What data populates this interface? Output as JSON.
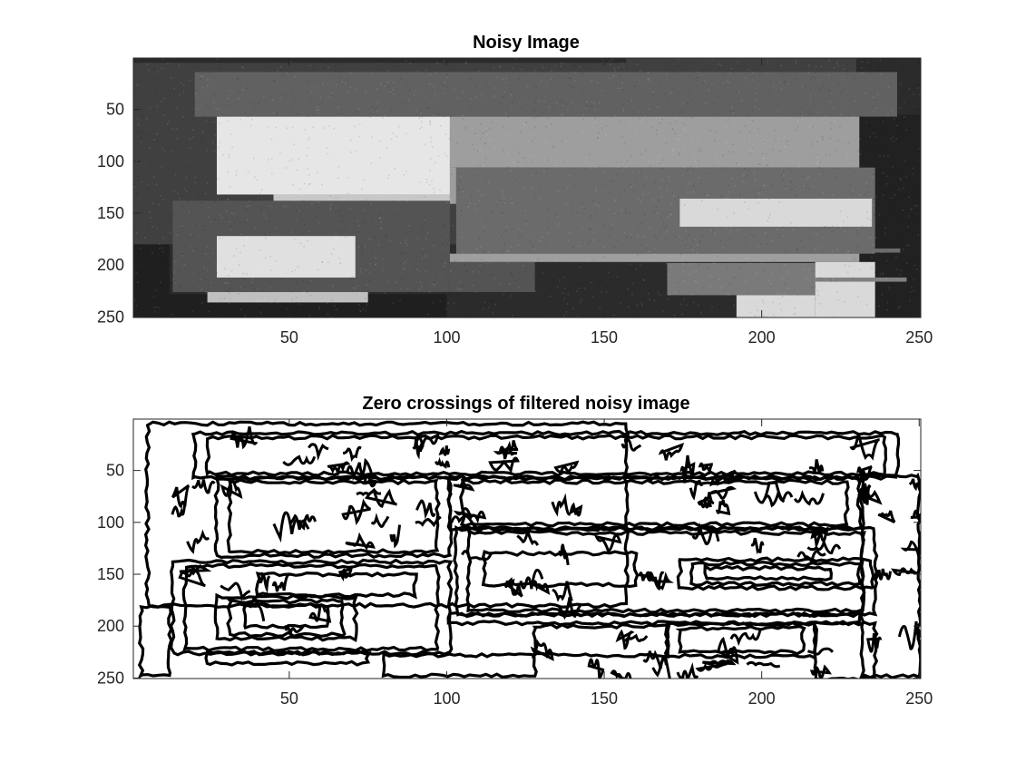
{
  "figure": {
    "background": "#ffffff"
  },
  "chart_data": [
    {
      "type": "heatmap",
      "title": "Noisy Image",
      "colormap": "gray",
      "xlim": [
        0.5,
        250.5
      ],
      "ylim": [
        0.5,
        250.5
      ],
      "y_reversed": true,
      "x_ticks": [
        50,
        100,
        150,
        200,
        250
      ],
      "y_ticks": [
        50,
        100,
        150,
        200,
        250
      ],
      "x_tick_labels": [
        "50",
        "100",
        "150",
        "200",
        "250"
      ],
      "y_tick_labels": [
        "50",
        "100",
        "150",
        "200",
        "250"
      ],
      "background_value": 0.17,
      "noise_amplitude": 0.05,
      "regions": [
        {
          "x": [
            0.5,
            250.5
          ],
          "y": [
            0.5,
            250.5
          ],
          "v": 0.17
        },
        {
          "x": [
            0.5,
            157
          ],
          "y": [
            5,
            180
          ],
          "v": 0.25
        },
        {
          "x": [
            157,
            230
          ],
          "y": [
            0.5,
            170
          ],
          "v": 0.25
        },
        {
          "x": [
            0.5,
            12
          ],
          "y": [
            180,
            250.5
          ],
          "v": 0.12
        },
        {
          "x": [
            230,
            250.5
          ],
          "y": [
            55,
            250.5
          ],
          "v": 0.13
        },
        {
          "x": [
            12,
            100
          ],
          "y": [
            228,
            250.5
          ],
          "v": 0.12
        },
        {
          "x": [
            20,
            243
          ],
          "y": [
            14,
            57
          ],
          "v": 0.38
        },
        {
          "x": [
            27,
            101
          ],
          "y": [
            57,
            132
          ],
          "v": 0.9
        },
        {
          "x": [
            101,
            231
          ],
          "y": [
            57,
            106
          ],
          "v": 0.62
        },
        {
          "x": [
            45,
            101
          ],
          "y": [
            132,
            141
          ],
          "v": 0.78
        },
        {
          "x": [
            101,
            103
          ],
          "y": [
            106,
            141
          ],
          "v": 0.62
        },
        {
          "x": [
            103,
            236
          ],
          "y": [
            106,
            189
          ],
          "v": 0.42
        },
        {
          "x": [
            174,
            235
          ],
          "y": [
            136,
            163
          ],
          "v": 0.85
        },
        {
          "x": [
            235,
            244
          ],
          "y": [
            184,
            188
          ],
          "v": 0.42
        },
        {
          "x": [
            13,
            101
          ],
          "y": [
            138,
            226
          ],
          "v": 0.33
        },
        {
          "x": [
            101,
            128
          ],
          "y": [
            197,
            226
          ],
          "v": 0.33
        },
        {
          "x": [
            101,
            231
          ],
          "y": [
            189,
            197
          ],
          "v": 0.62
        },
        {
          "x": [
            27,
            71
          ],
          "y": [
            172,
            212
          ],
          "v": 0.88
        },
        {
          "x": [
            24,
            75
          ],
          "y": [
            226,
            236
          ],
          "v": 0.75
        },
        {
          "x": [
            170,
            217
          ],
          "y": [
            198,
            229
          ],
          "v": 0.48
        },
        {
          "x": [
            217,
            236
          ],
          "y": [
            197,
            250.5
          ],
          "v": 0.85
        },
        {
          "x": [
            192,
            217
          ],
          "y": [
            229,
            250.5
          ],
          "v": 0.85
        },
        {
          "x": [
            217,
            246
          ],
          "y": [
            212,
            216
          ],
          "v": 0.5
        },
        {
          "x": [
            236,
            246
          ],
          "y": [
            212,
            216
          ],
          "v": 0.5
        }
      ]
    },
    {
      "type": "heatmap",
      "title": "Zero crossings of filtered noisy image",
      "colormap": "binary",
      "xlim": [
        0.5,
        250.5
      ],
      "ylim": [
        0.5,
        250.5
      ],
      "y_reversed": true,
      "x_ticks": [
        50,
        100,
        150,
        200,
        250
      ],
      "y_ticks": [
        50,
        100,
        150,
        200,
        250
      ],
      "x_tick_labels": [
        "50",
        "100",
        "150",
        "200",
        "250"
      ],
      "y_tick_labels": [
        "50",
        "100",
        "150",
        "200",
        "250"
      ],
      "edge_color": "#000000",
      "background_color": "#ffffff",
      "contours": [
        {
          "x": [
            27,
            101
          ],
          "y": [
            57,
            132
          ]
        },
        {
          "x": [
            31,
            97
          ],
          "y": [
            61,
            128
          ]
        },
        {
          "x": [
            101,
            231
          ],
          "y": [
            57,
            106
          ]
        },
        {
          "x": [
            105,
            227
          ],
          "y": [
            61,
            102
          ]
        },
        {
          "x": [
            103,
            236
          ],
          "y": [
            106,
            189
          ]
        },
        {
          "x": [
            107,
            232
          ],
          "y": [
            110,
            185
          ]
        },
        {
          "x": [
            174,
            235
          ],
          "y": [
            136,
            163
          ]
        },
        {
          "x": [
            178,
            231
          ],
          "y": [
            140,
            159
          ]
        },
        {
          "x": [
            13,
            101
          ],
          "y": [
            138,
            226
          ]
        },
        {
          "x": [
            17,
            97
          ],
          "y": [
            142,
            222
          ]
        },
        {
          "x": [
            27,
            71
          ],
          "y": [
            172,
            212
          ]
        },
        {
          "x": [
            31,
            67
          ],
          "y": [
            176,
            208
          ]
        },
        {
          "x": [
            20,
            243
          ],
          "y": [
            14,
            57
          ]
        },
        {
          "x": [
            24,
            239
          ],
          "y": [
            18,
            53
          ]
        },
        {
          "x": [
            170,
            217
          ],
          "y": [
            198,
            229
          ]
        },
        {
          "x": [
            174,
            213
          ],
          "y": [
            202,
            225
          ]
        },
        {
          "x": [
            217,
            236
          ],
          "y": [
            197,
            250.5
          ]
        },
        {
          "x": [
            24,
            75
          ],
          "y": [
            226,
            236
          ]
        },
        {
          "x": [
            101,
            231
          ],
          "y": [
            189,
            197
          ]
        },
        {
          "x": [
            5,
            157
          ],
          "y": [
            5,
            180
          ]
        },
        {
          "x": [
            232,
            250
          ],
          "y": [
            55,
            248
          ]
        },
        {
          "x": [
            128,
            170
          ],
          "y": [
            200,
            228
          ]
        },
        {
          "x": [
            80,
            128
          ],
          "y": [
            228,
            248
          ]
        },
        {
          "x": [
            3,
            12
          ],
          "y": [
            182,
            248
          ]
        },
        {
          "x": [
            36,
            62
          ],
          "y": [
            180,
            200
          ]
        },
        {
          "x": [
            112,
            160
          ],
          "y": [
            130,
            160
          ]
        },
        {
          "x": [
            40,
            90
          ],
          "y": [
            150,
            170
          ]
        },
        {
          "x": [
            182,
            222
          ],
          "y": [
            144,
            154
          ]
        }
      ],
      "texture_regions": [
        {
          "x": [
            24,
            239
          ],
          "y": [
            18,
            53
          ]
        },
        {
          "x": [
            31,
            97
          ],
          "y": [
            61,
            128
          ]
        },
        {
          "x": [
            105,
            227
          ],
          "y": [
            61,
            102
          ]
        },
        {
          "x": [
            107,
            232
          ],
          "y": [
            110,
            136
          ]
        },
        {
          "x": [
            17,
            97
          ],
          "y": [
            142,
            170
          ]
        },
        {
          "x": [
            107,
            172
          ],
          "y": [
            136,
            185
          ]
        },
        {
          "x": [
            31,
            67
          ],
          "y": [
            176,
            208
          ]
        },
        {
          "x": [
            128,
            232
          ],
          "y": [
            197,
            248
          ]
        },
        {
          "x": [
            5,
            24
          ],
          "y": [
            60,
            135
          ]
        },
        {
          "x": [
            232,
            250
          ],
          "y": [
            60,
            248
          ]
        }
      ]
    }
  ]
}
